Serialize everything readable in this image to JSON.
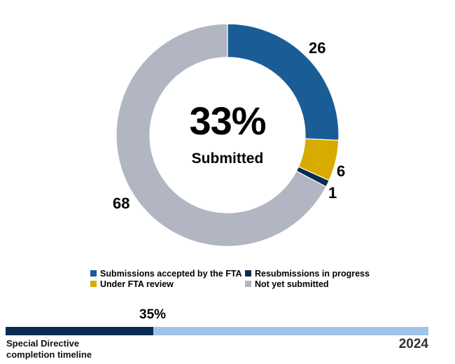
{
  "chart_data": [
    {
      "type": "pie",
      "subtype": "donut",
      "title": "",
      "center_value": "33%",
      "center_label": "Submitted",
      "categories": [
        "Submissions accepted by the FTA",
        "Under FTA review",
        "Resubmissions in progress",
        "Not yet submitted"
      ],
      "values": [
        26,
        6,
        1,
        68
      ],
      "colors": [
        "#1a5c96",
        "#d8ab00",
        "#0b2d4f",
        "#b1b6c2"
      ],
      "data_labels": [
        "26",
        "6",
        "1",
        "68"
      ],
      "legend_position": "bottom",
      "start_angle_deg": 0,
      "direction": "clockwise"
    },
    {
      "type": "bar",
      "subtype": "progress",
      "title": "Special Directive completion timeline",
      "categories": [
        "Elapsed"
      ],
      "values": [
        35
      ],
      "value_label": "35%",
      "end_label": "2024",
      "xlim": [
        0,
        100
      ],
      "colors": {
        "fill": "#0b2d4f",
        "track": "#9fc4ea"
      }
    }
  ],
  "donut": {
    "center_value": "33%",
    "center_label": "Submitted",
    "labels": {
      "accepted": "26",
      "review": "6",
      "resubmission": "1",
      "not_submitted": "68"
    }
  },
  "legend": {
    "items": [
      {
        "label": "Submissions accepted by the FTA",
        "color": "#1a5c96"
      },
      {
        "label": "Resubmissions in progress",
        "color": "#0b2d4f"
      },
      {
        "label": "Under FTA review",
        "color": "#d8ab00"
      },
      {
        "label": "Not yet submitted",
        "color": "#b1b6c2"
      }
    ]
  },
  "timeline": {
    "percent_label": "35%",
    "percent": 35,
    "label_line1": "Special Directive",
    "label_line2": "completion timeline",
    "year": "2024"
  }
}
